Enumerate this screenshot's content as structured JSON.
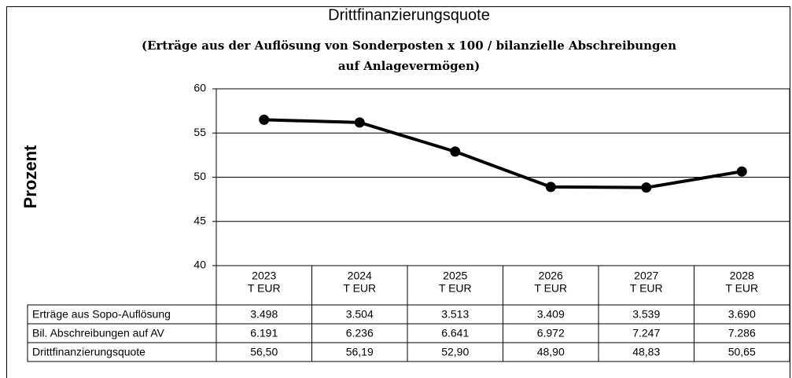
{
  "chart_data": {
    "type": "line",
    "title": "Drittfinanzierungsquote",
    "subtitle": [
      "(Erträge aus der Auflösung von Sonderposten x 100 / bilanzielle Abschreibungen",
      "auf Anlagevermögen)"
    ],
    "y_label": "Prozent",
    "categories": [
      "2023",
      "2024",
      "2025",
      "2026",
      "2027",
      "2028"
    ],
    "unit_label": "T EUR",
    "series": [
      {
        "name": "Drittfinanzierungsquote",
        "color": "#000000",
        "values": [
          56.5,
          56.19,
          52.9,
          48.9,
          48.83,
          50.65
        ],
        "value_labels": [
          "56,50",
          "56,19",
          "52,90",
          "48,90",
          "48,83",
          "50,65"
        ]
      }
    ],
    "ylim": [
      40,
      60
    ],
    "yticks": [
      40,
      45,
      50,
      55,
      60
    ],
    "grid": true,
    "table": [
      {
        "label": "Erträge aus Sopo-Auflösung",
        "values": [
          "3.498",
          "3.504",
          "3.513",
          "3.409",
          "3.539",
          "3.690"
        ]
      },
      {
        "label": "Bil. Abschreibungen auf AV",
        "values": [
          "6.191",
          "6.236",
          "6.641",
          "6.972",
          "7.247",
          "7.286"
        ]
      }
    ]
  }
}
